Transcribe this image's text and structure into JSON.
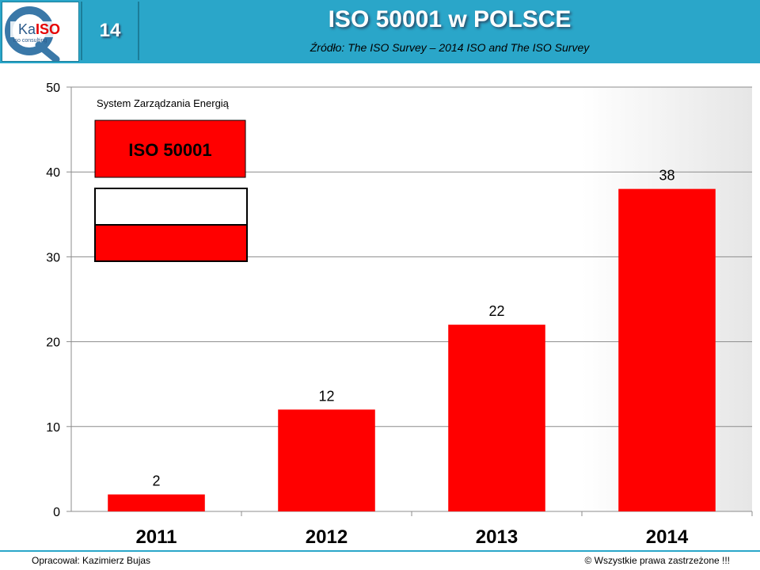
{
  "header": {
    "slide_number": "14",
    "title": "ISO 50001 w POLSCE",
    "subtitle": "Źródło: The ISO Survey – 2014   ISO and The ISO Survey",
    "logo": {
      "text_ka": "Ka",
      "text_iso": "ISO",
      "tagline": "iso consulting",
      "letter": "Q"
    }
  },
  "legend": {
    "caption": "System Zarządzania Energią",
    "badge": "ISO 50001"
  },
  "colors": {
    "bar": "#ff0000",
    "header": "#2aa6c9",
    "flag_white": "#ffffff",
    "flag_red": "#ff0000"
  },
  "chart_data": {
    "type": "bar",
    "categories": [
      "2011",
      "2012",
      "2013",
      "2014"
    ],
    "values": [
      2,
      12,
      22,
      38
    ],
    "ylim": [
      0,
      50
    ],
    "yticks": [
      0,
      10,
      20,
      30,
      40,
      50
    ],
    "grid": true,
    "data_labels": true
  },
  "footer": {
    "left": "Opracował: Kazimierz Bujas",
    "right": "© Wszystkie prawa zastrzeżone !!!"
  }
}
